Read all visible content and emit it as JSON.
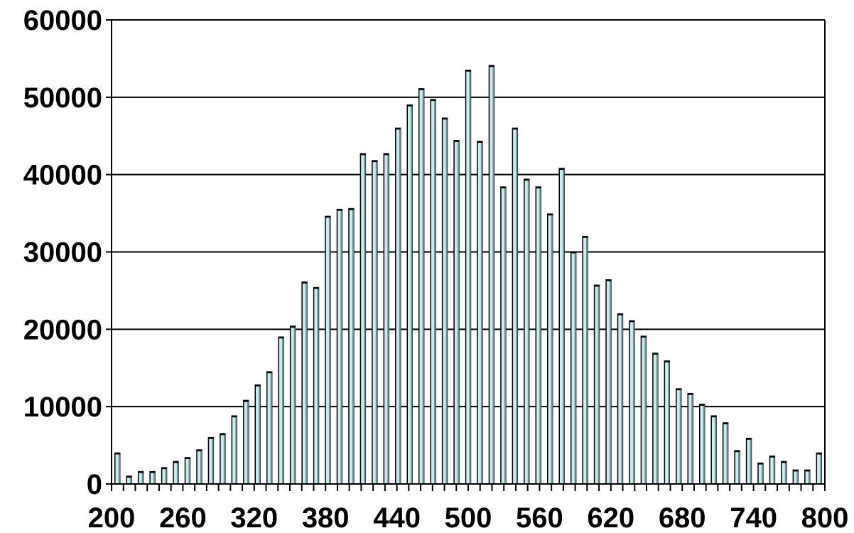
{
  "chart_data": {
    "type": "bar",
    "title": "",
    "xlabel": "",
    "ylabel": "",
    "x": [
      200,
      210,
      220,
      230,
      240,
      250,
      260,
      270,
      280,
      290,
      300,
      310,
      320,
      330,
      340,
      350,
      360,
      370,
      380,
      390,
      400,
      410,
      420,
      430,
      440,
      450,
      460,
      470,
      480,
      490,
      500,
      510,
      520,
      530,
      540,
      550,
      560,
      570,
      580,
      590,
      600,
      610,
      620,
      630,
      640,
      650,
      660,
      670,
      680,
      690,
      700,
      710,
      720,
      730,
      740,
      750,
      760,
      770,
      780,
      790,
      800
    ],
    "values": [
      4000,
      1000,
      1600,
      1600,
      2100,
      2900,
      3400,
      4400,
      6000,
      6500,
      8800,
      10800,
      12800,
      14500,
      19000,
      20400,
      26100,
      25400,
      34600,
      35500,
      35600,
      42700,
      41800,
      42700,
      46000,
      49000,
      51100,
      49700,
      47300,
      44400,
      53500,
      44300,
      54100,
      38400,
      46000,
      39400,
      38400,
      34900,
      40800,
      30000,
      32000,
      25700,
      26400,
      22000,
      21100,
      19100,
      16900,
      15900,
      12300,
      11700,
      10300,
      8800,
      7900,
      4300,
      5900,
      2700,
      3600,
      2900,
      1800,
      1800,
      4000
    ],
    "ylim": [
      0,
      60000
    ],
    "xlim": [
      200,
      800
    ],
    "y_ticks": [
      "0",
      "10000",
      "20000",
      "30000",
      "40000",
      "50000",
      "60000"
    ],
    "x_tick_labels": [
      "200",
      "260",
      "320",
      "380",
      "440",
      "500",
      "560",
      "620",
      "680",
      "740",
      "800"
    ],
    "grid": "horizontal",
    "legend": "none",
    "colors": {
      "bar_fill": "#cdeaee",
      "bar_edge": "#000000",
      "bar_side": "#6f8f94",
      "grid": "#000000"
    }
  }
}
